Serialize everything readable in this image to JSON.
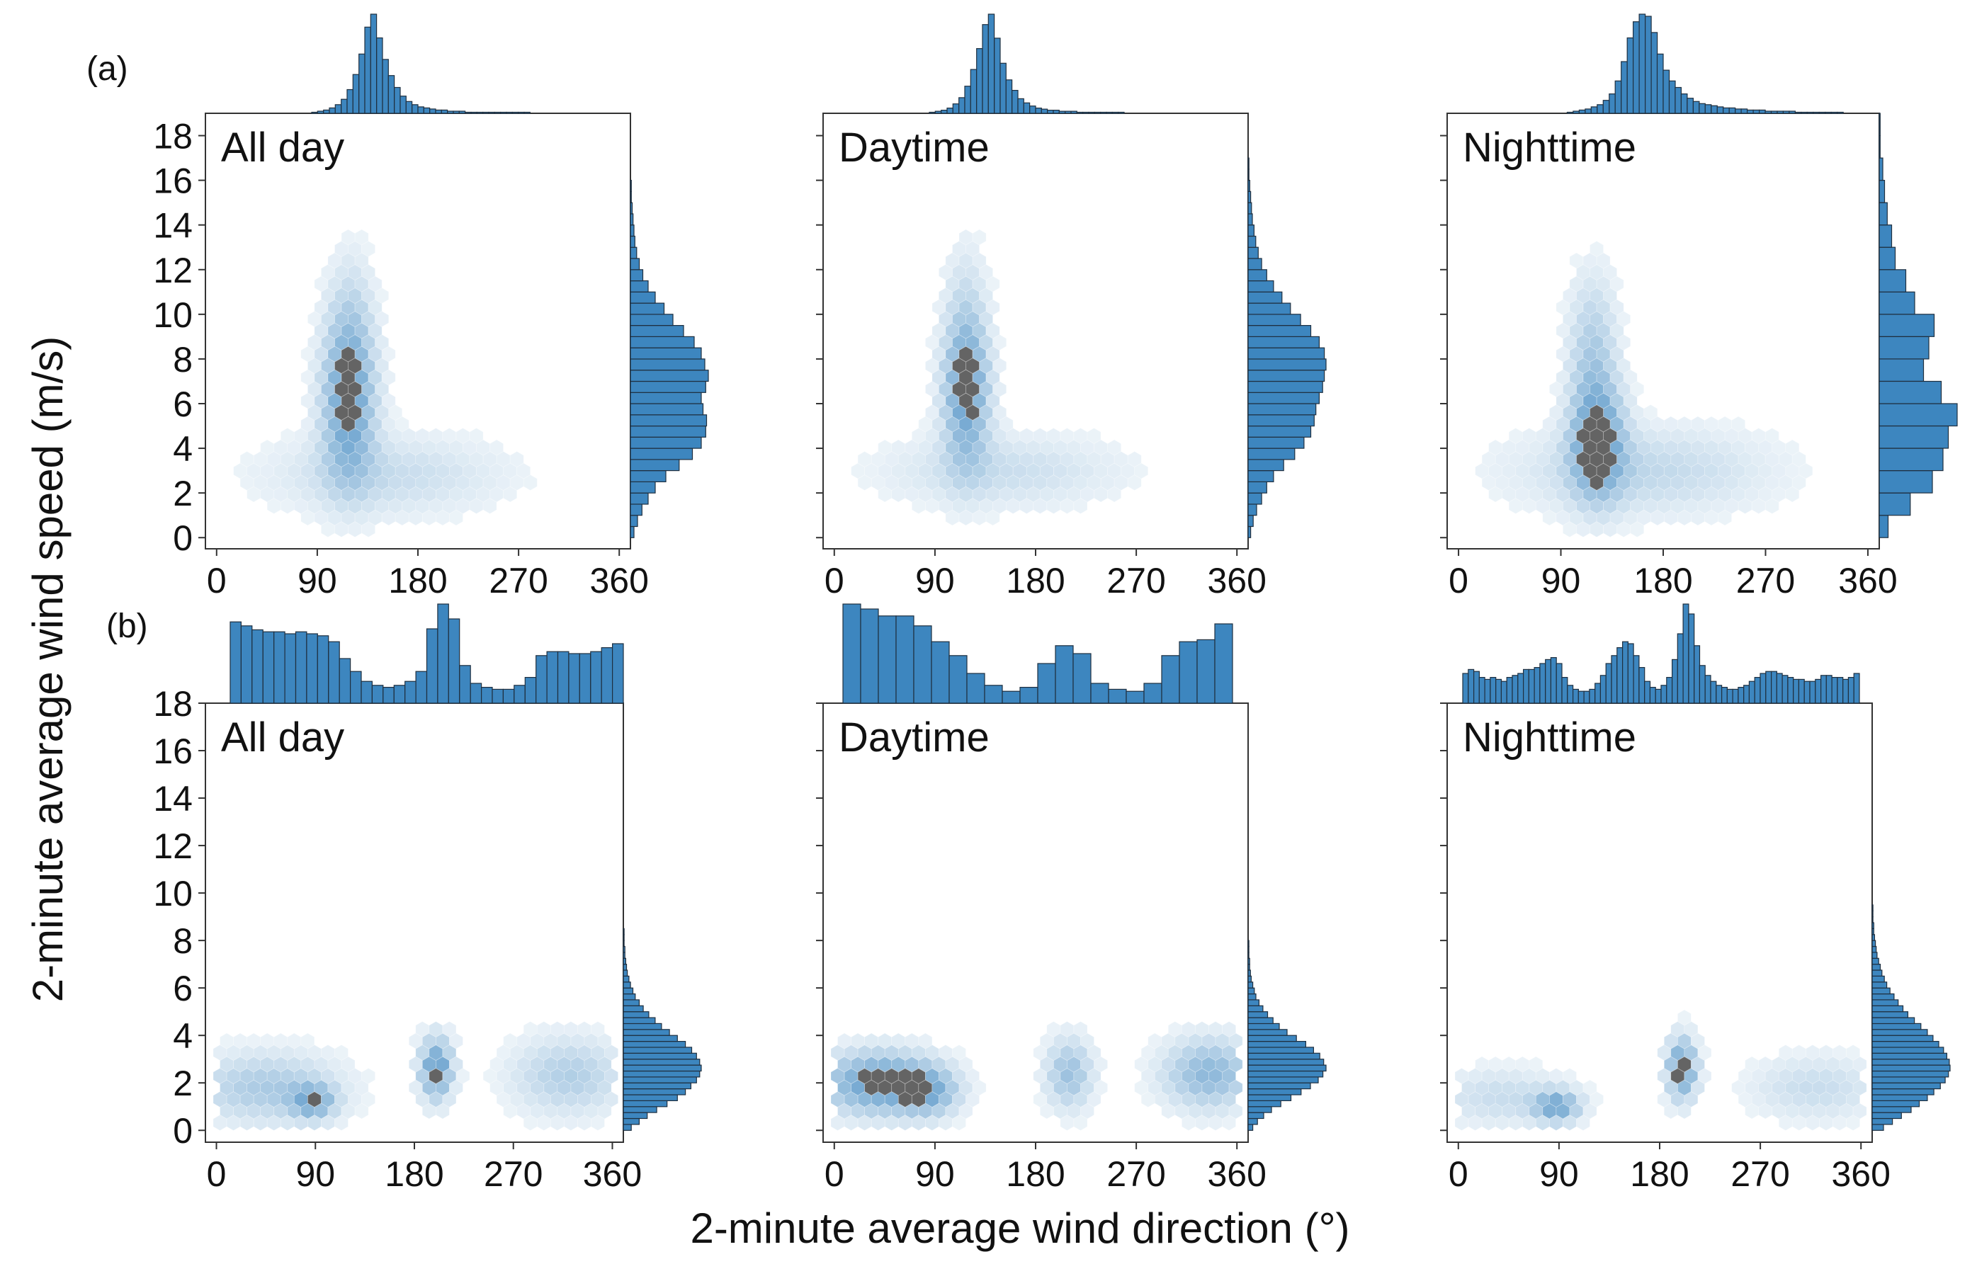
{
  "figure": {
    "xlabel": "2-minute average wind direction (°)",
    "ylabel": "2-minute average wind speed (m/s)",
    "row_labels": [
      "(a)",
      "(b)"
    ],
    "bar_color": "#3d86bf",
    "bar_edge": "#1f2f3f",
    "hex_color": "#3d86bf",
    "hex_dark": "#303030"
  },
  "chart_data": [
    {
      "type": "hexbin-joint",
      "row": "(a)",
      "title": "All day",
      "xlim": [
        -10,
        370
      ],
      "ylim": [
        -0.5,
        19
      ],
      "xticks": [
        0,
        90,
        180,
        270,
        360
      ],
      "yticks": [
        0,
        2,
        4,
        6,
        8,
        10,
        12,
        14,
        16,
        18
      ],
      "clusters": [
        {
          "cx": 118,
          "cy": 6.2,
          "sx": 16,
          "sy": 2.4,
          "w": 1.0
        },
        {
          "cx": 120,
          "cy": 10.0,
          "sx": 14,
          "sy": 2.0,
          "w": 0.25
        },
        {
          "cx": 150,
          "cy": 2.8,
          "sx": 70,
          "sy": 1.2,
          "w": 0.3
        }
      ],
      "x_hist": {
        "start": 0,
        "width": 5,
        "values": [
          0,
          0,
          0,
          0,
          0,
          0,
          0,
          0,
          0,
          0,
          0,
          0,
          0,
          0,
          0,
          0,
          0,
          0,
          1,
          2,
          3,
          5,
          8,
          13,
          22,
          36,
          55,
          80,
          92,
          70,
          50,
          35,
          24,
          16,
          11,
          8,
          6,
          5,
          4,
          3,
          3,
          2,
          2,
          2,
          1,
          1,
          1,
          1,
          1,
          1,
          1,
          1,
          1,
          1,
          1,
          0,
          0,
          0,
          0,
          0,
          0,
          0,
          0,
          0,
          0,
          0,
          0,
          0,
          0,
          0,
          0,
          0
        ]
      },
      "y_hist": {
        "start": 0,
        "width": 0.5,
        "values": [
          4,
          8,
          13,
          20,
          28,
          40,
          55,
          70,
          80,
          85,
          86,
          82,
          80,
          85,
          88,
          84,
          80,
          72,
          60,
          48,
          38,
          28,
          20,
          14,
          10,
          7,
          5,
          4,
          3,
          2,
          1,
          1,
          0,
          0,
          0,
          0,
          0,
          0
        ]
      }
    },
    {
      "type": "hexbin-joint",
      "row": "(a)",
      "title": "Daytime",
      "xlim": [
        -10,
        370
      ],
      "ylim": [
        -0.5,
        19
      ],
      "xticks": [
        0,
        90,
        180,
        270,
        360
      ],
      "yticks": [
        0,
        2,
        4,
        6,
        8,
        10,
        12,
        14,
        16,
        18
      ],
      "clusters": [
        {
          "cx": 118,
          "cy": 6.6,
          "sx": 14,
          "sy": 2.2,
          "w": 1.0
        },
        {
          "cx": 118,
          "cy": 10.5,
          "sx": 12,
          "sy": 2.0,
          "w": 0.22
        },
        {
          "cx": 150,
          "cy": 3.0,
          "sx": 70,
          "sy": 1.1,
          "w": 0.28
        }
      ],
      "x_hist": {
        "start": 0,
        "width": 5,
        "values": [
          0,
          0,
          0,
          0,
          0,
          0,
          0,
          0,
          0,
          0,
          0,
          0,
          0,
          0,
          0,
          0,
          0,
          0,
          1,
          2,
          3,
          5,
          9,
          15,
          26,
          42,
          62,
          85,
          95,
          72,
          48,
          32,
          22,
          14,
          10,
          7,
          5,
          4,
          3,
          3,
          2,
          2,
          2,
          1,
          1,
          1,
          1,
          1,
          1,
          1,
          1,
          0,
          0,
          0,
          0,
          0,
          0,
          0,
          0,
          0,
          0,
          0,
          0,
          0,
          0,
          0,
          0,
          0,
          0,
          0,
          0,
          0
        ]
      },
      "y_hist": {
        "start": 0,
        "width": 0.5,
        "values": [
          3,
          6,
          10,
          16,
          22,
          30,
          42,
          55,
          66,
          74,
          78,
          80,
          84,
          88,
          90,
          92,
          90,
          84,
          74,
          62,
          50,
          40,
          30,
          22,
          16,
          12,
          9,
          7,
          5,
          4,
          3,
          2,
          1,
          1,
          0,
          0,
          0,
          0
        ]
      }
    },
    {
      "type": "hexbin-joint",
      "row": "(a)",
      "title": "Nighttime",
      "xlim": [
        -10,
        370
      ],
      "ylim": [
        -0.5,
        19
      ],
      "xticks": [
        0,
        90,
        180,
        270,
        360
      ],
      "yticks": [
        0,
        2,
        4,
        6,
        8,
        10,
        12,
        14,
        16,
        18
      ],
      "clusters": [
        {
          "cx": 122,
          "cy": 4.4,
          "sx": 16,
          "sy": 1.8,
          "w": 1.0
        },
        {
          "cx": 118,
          "cy": 8.5,
          "sx": 14,
          "sy": 2.2,
          "w": 0.45
        },
        {
          "cx": 160,
          "cy": 3.0,
          "sx": 75,
          "sy": 1.3,
          "w": 0.35
        }
      ],
      "x_hist": {
        "start": 0,
        "width": 5,
        "values": [
          0,
          0,
          0,
          0,
          0,
          0,
          0,
          0,
          0,
          0,
          0,
          0,
          0,
          0,
          0,
          0,
          0,
          0,
          0,
          0,
          1,
          2,
          3,
          4,
          6,
          8,
          12,
          18,
          30,
          48,
          70,
          85,
          92,
          90,
          75,
          55,
          40,
          30,
          24,
          18,
          14,
          11,
          9,
          8,
          7,
          6,
          5,
          5,
          4,
          4,
          3,
          3,
          3,
          2,
          2,
          2,
          2,
          2,
          1,
          1,
          1,
          1,
          1,
          1,
          1,
          1,
          0,
          0,
          0,
          0,
          0,
          0
        ]
      },
      "y_hist": {
        "start": 0,
        "width": 1,
        "values": [
          10,
          35,
          60,
          72,
          78,
          88,
          70,
          50,
          56,
          62,
          40,
          30,
          18,
          14,
          9,
          6,
          4,
          1,
          1
        ]
      }
    },
    {
      "type": "hexbin-joint",
      "row": "(b)",
      "title": "All day",
      "xlim": [
        -10,
        370
      ],
      "ylim": [
        -0.5,
        18
      ],
      "xticks": [
        0,
        90,
        180,
        270,
        360
      ],
      "yticks": [
        0,
        2,
        4,
        6,
        8,
        10,
        12,
        14,
        16,
        18
      ],
      "clusters": [
        {
          "cx": 45,
          "cy": 1.8,
          "sx": 45,
          "sy": 1.0,
          "w": 0.5
        },
        {
          "cx": 88,
          "cy": 1.2,
          "sx": 14,
          "sy": 0.5,
          "w": 0.7
        },
        {
          "cx": 200,
          "cy": 2.6,
          "sx": 10,
          "sy": 0.9,
          "w": 1.0
        },
        {
          "cx": 320,
          "cy": 2.3,
          "sx": 35,
          "sy": 1.1,
          "w": 0.45
        }
      ],
      "x_hist": {
        "start": 0,
        "width": 10,
        "values": [
          82,
          78,
          74,
          72,
          72,
          70,
          72,
          70,
          68,
          62,
          45,
          32,
          22,
          18,
          16,
          18,
          22,
          32,
          75,
          100,
          85,
          38,
          20,
          16,
          14,
          14,
          18,
          26,
          48,
          52,
          52,
          50,
          50,
          52,
          56,
          60
        ]
      },
      "y_hist": {
        "start": 0,
        "width": 0.25,
        "values": [
          10,
          20,
          30,
          42,
          55,
          68,
          78,
          85,
          92,
          96,
          98,
          96,
          92,
          86,
          78,
          68,
          58,
          48,
          40,
          32,
          25,
          20,
          15,
          12,
          9,
          7,
          5,
          4,
          3,
          2,
          2,
          1,
          1,
          1,
          0,
          0,
          0,
          0,
          0,
          0,
          0,
          0,
          0,
          0,
          0,
          0,
          0,
          0,
          0,
          0,
          0,
          0,
          0,
          0,
          0,
          0,
          0,
          0,
          0,
          0,
          0,
          0,
          0,
          0,
          0,
          0,
          0,
          0,
          0,
          0,
          0,
          0
        ]
      }
    },
    {
      "type": "hexbin-joint",
      "row": "(b)",
      "title": "Daytime",
      "xlim": [
        -10,
        370
      ],
      "ylim": [
        -0.5,
        18
      ],
      "xticks": [
        0,
        90,
        180,
        270,
        360
      ],
      "yticks": [
        0,
        2,
        4,
        6,
        8,
        10,
        12,
        14,
        16,
        18
      ],
      "clusters": [
        {
          "cx": 40,
          "cy": 2.0,
          "sx": 35,
          "sy": 0.9,
          "w": 1.0
        },
        {
          "cx": 85,
          "cy": 1.6,
          "sx": 18,
          "sy": 0.7,
          "w": 0.6
        },
        {
          "cx": 210,
          "cy": 2.4,
          "sx": 14,
          "sy": 1.0,
          "w": 0.6
        },
        {
          "cx": 335,
          "cy": 2.4,
          "sx": 28,
          "sy": 1.0,
          "w": 0.7
        }
      ],
      "x_hist": {
        "start": 0,
        "width": 15,
        "values": [
          100,
          95,
          88,
          88,
          78,
          62,
          48,
          30,
          18,
          12,
          16,
          40,
          58,
          50,
          20,
          14,
          12,
          20,
          48,
          62,
          64,
          80
        ]
      },
      "y_hist": {
        "start": 0,
        "width": 0.25,
        "values": [
          6,
          12,
          20,
          30,
          42,
          55,
          68,
          80,
          90,
          96,
          100,
          97,
          92,
          84,
          74,
          62,
          50,
          40,
          32,
          25,
          19,
          14,
          10,
          8,
          6,
          4,
          3,
          2,
          2,
          1,
          1,
          1,
          0,
          0,
          0,
          0,
          0,
          0,
          0,
          0,
          0,
          0,
          0,
          0,
          0,
          0,
          0,
          0,
          0,
          0,
          0,
          0,
          0,
          0,
          0,
          0,
          0,
          0,
          0,
          0,
          0,
          0,
          0,
          0,
          0,
          0,
          0,
          0,
          0,
          0,
          0,
          0
        ]
      }
    },
    {
      "type": "hexbin-joint",
      "row": "(b)",
      "title": "Nighttime",
      "xlim": [
        -10,
        370
      ],
      "ylim": [
        -0.5,
        18
      ],
      "xticks": [
        0,
        90,
        180,
        270,
        360
      ],
      "yticks": [
        0,
        2,
        4,
        6,
        8,
        10,
        12,
        14,
        16,
        18
      ],
      "clusters": [
        {
          "cx": 88,
          "cy": 1.0,
          "sx": 14,
          "sy": 0.45,
          "w": 0.8
        },
        {
          "cx": 40,
          "cy": 1.4,
          "sx": 40,
          "sy": 0.8,
          "w": 0.3
        },
        {
          "cx": 200,
          "cy": 2.6,
          "sx": 9,
          "sy": 0.9,
          "w": 1.0
        },
        {
          "cx": 320,
          "cy": 1.8,
          "sx": 40,
          "sy": 0.9,
          "w": 0.3
        }
      ],
      "x_hist": {
        "start": 0,
        "width": 5,
        "values": [
          30,
          34,
          32,
          26,
          24,
          26,
          24,
          22,
          26,
          28,
          30,
          34,
          34,
          36,
          40,
          44,
          46,
          40,
          26,
          18,
          14,
          12,
          12,
          14,
          20,
          28,
          40,
          48,
          56,
          62,
          60,
          48,
          36,
          22,
          16,
          14,
          18,
          26,
          44,
          70,
          100,
          90,
          58,
          38,
          28,
          22,
          18,
          16,
          14,
          14,
          16,
          18,
          22,
          26,
          30,
          32,
          32,
          30,
          28,
          26,
          24,
          24,
          22,
          22,
          24,
          28,
          28,
          26,
          26,
          24,
          26,
          30
        ]
      },
      "y_hist": {
        "start": 0,
        "width": 0.25,
        "values": [
          14,
          25,
          36,
          48,
          58,
          68,
          76,
          84,
          90,
          94,
          96,
          95,
          92,
          88,
          82,
          75,
          68,
          60,
          52,
          44,
          38,
          32,
          27,
          22,
          18,
          15,
          12,
          10,
          8,
          6,
          5,
          4,
          3,
          2,
          2,
          1,
          1,
          1,
          0,
          0,
          0,
          0,
          0,
          0,
          0,
          0,
          0,
          0,
          0,
          0,
          0,
          0,
          0,
          0,
          0,
          0,
          0,
          0,
          0,
          0,
          0,
          0,
          0,
          0,
          0,
          0,
          0,
          0,
          0,
          0,
          0,
          0
        ]
      }
    }
  ]
}
